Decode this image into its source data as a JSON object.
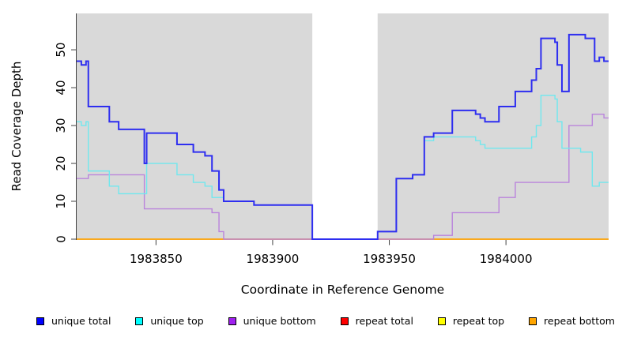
{
  "figure": {
    "background": "#FFFFFF",
    "panel_bg": "#D9D9D9",
    "axis_color": "#404040",
    "tick_label_color": "#000000"
  },
  "chart_data": {
    "type": "line",
    "line_style": "step-after",
    "title": "",
    "xlabel": "Coordinate in Reference Genome",
    "ylabel": "Read Coverage Depth",
    "xlim": [
      1983816,
      1984044
    ],
    "ylim": [
      0,
      59.6
    ],
    "x_ticks": [
      1983850,
      1983900,
      1983950,
      1984000
    ],
    "y_ticks": [
      0,
      10,
      20,
      30,
      40,
      50
    ],
    "grid": false,
    "legend_position": "bottom",
    "gap_band": {
      "from": 1983917,
      "to": 1983945,
      "color": "#FFFFFF"
    },
    "series": [
      {
        "name": "unique total",
        "legend_color": "#0000FF",
        "line_color": "#2E2EF0",
        "line_width": 2,
        "steps": [
          [
            1983816,
            47
          ],
          [
            1983818,
            46
          ],
          [
            1983820,
            47
          ],
          [
            1983821,
            35
          ],
          [
            1983830,
            31
          ],
          [
            1983834,
            29
          ],
          [
            1983845,
            20
          ],
          [
            1983846,
            28
          ],
          [
            1983859,
            25
          ],
          [
            1983866,
            23
          ],
          [
            1983871,
            22
          ],
          [
            1983874,
            18
          ],
          [
            1983877,
            13
          ],
          [
            1983879,
            10
          ],
          [
            1983892,
            9
          ],
          [
            1983917,
            0
          ],
          [
            1983945,
            2
          ],
          [
            1983953,
            16
          ],
          [
            1983960,
            17
          ],
          [
            1983965,
            27
          ],
          [
            1983969,
            28
          ],
          [
            1983977,
            34
          ],
          [
            1983987,
            33
          ],
          [
            1983989,
            32
          ],
          [
            1983991,
            31
          ],
          [
            1983997,
            35
          ],
          [
            1984004,
            39
          ],
          [
            1984011,
            42
          ],
          [
            1984013,
            45
          ],
          [
            1984015,
            53
          ],
          [
            1984021,
            52
          ],
          [
            1984022,
            46
          ],
          [
            1984024,
            39
          ],
          [
            1984027,
            54
          ],
          [
            1984034,
            53
          ],
          [
            1984038,
            47
          ],
          [
            1984040,
            48
          ],
          [
            1984042,
            47
          ]
        ]
      },
      {
        "name": "unique top",
        "legend_color": "#00FFFF",
        "line_color": "#70E8EE",
        "line_width": 1.4,
        "steps": [
          [
            1983816,
            31
          ],
          [
            1983818,
            30
          ],
          [
            1983820,
            31
          ],
          [
            1983821,
            18
          ],
          [
            1983830,
            14
          ],
          [
            1983834,
            12
          ],
          [
            1983846,
            20
          ],
          [
            1983859,
            17
          ],
          [
            1983866,
            15
          ],
          [
            1983871,
            14
          ],
          [
            1983874,
            11
          ],
          [
            1983879,
            10
          ],
          [
            1983892,
            9
          ],
          [
            1983917,
            0
          ],
          [
            1983945,
            2
          ],
          [
            1983953,
            16
          ],
          [
            1983960,
            17
          ],
          [
            1983965,
            26
          ],
          [
            1983969,
            27
          ],
          [
            1983987,
            26
          ],
          [
            1983989,
            25
          ],
          [
            1983991,
            24
          ],
          [
            1984011,
            27
          ],
          [
            1984013,
            30
          ],
          [
            1984015,
            38
          ],
          [
            1984021,
            37
          ],
          [
            1984022,
            31
          ],
          [
            1984024,
            24
          ],
          [
            1984032,
            23
          ],
          [
            1984037,
            14
          ],
          [
            1984040,
            15
          ]
        ]
      },
      {
        "name": "unique bottom",
        "legend_color": "#A020F0",
        "line_color": "#BA84DC",
        "line_width": 1.4,
        "steps": [
          [
            1983816,
            16
          ],
          [
            1983821,
            17
          ],
          [
            1983845,
            8
          ],
          [
            1983874,
            7
          ],
          [
            1983877,
            2
          ],
          [
            1983879,
            0
          ],
          [
            1983969,
            1
          ],
          [
            1983977,
            7
          ],
          [
            1983997,
            11
          ],
          [
            1984004,
            15
          ],
          [
            1984027,
            30
          ],
          [
            1984037,
            33
          ],
          [
            1984042,
            32
          ]
        ]
      },
      {
        "name": "repeat total",
        "legend_color": "#FF0000",
        "line_color": "#DD4455",
        "line_width": 1.4,
        "steps": [
          [
            1983816,
            0
          ]
        ]
      },
      {
        "name": "repeat top",
        "legend_color": "#FFFF00",
        "line_color": "#FFFF00",
        "line_width": 1.4,
        "steps": [
          [
            1983816,
            0
          ]
        ]
      },
      {
        "name": "repeat bottom",
        "legend_color": "#FFA500",
        "line_color": "#FF9F0E",
        "line_width": 1.6,
        "steps": [
          [
            1983816,
            0
          ]
        ]
      }
    ]
  }
}
